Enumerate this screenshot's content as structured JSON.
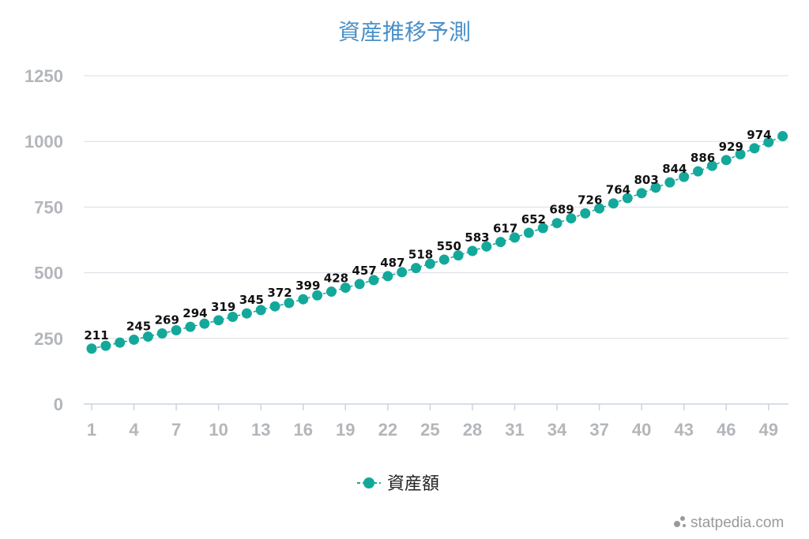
{
  "chart_data": {
    "type": "line",
    "title": "資産推移予測",
    "xlabel": "",
    "ylabel": "",
    "x": [
      1,
      2,
      3,
      4,
      5,
      6,
      7,
      8,
      9,
      10,
      11,
      12,
      13,
      14,
      15,
      16,
      17,
      18,
      19,
      20,
      21,
      22,
      23,
      24,
      25,
      26,
      27,
      28,
      29,
      30,
      31,
      32,
      33,
      34,
      35,
      36,
      37,
      38,
      39,
      40,
      41,
      42,
      43,
      44,
      45,
      46,
      47,
      48,
      49,
      50
    ],
    "x_ticks": [
      "1",
      "4",
      "7",
      "10",
      "13",
      "16",
      "19",
      "22",
      "25",
      "28",
      "31",
      "34",
      "37",
      "40",
      "43",
      "46",
      "49"
    ],
    "ylim": [
      0,
      1250
    ],
    "y_ticks": [
      "0",
      "250",
      "500",
      "750",
      "1000",
      "1250"
    ],
    "grid": true,
    "legend_position": "bottom",
    "series": [
      {
        "name": "資産額",
        "color": "#14a89a",
        "values": [
          211,
          222,
          234,
          245,
          257,
          269,
          281,
          294,
          306,
          319,
          332,
          345,
          358,
          372,
          385,
          399,
          414,
          428,
          443,
          457,
          472,
          487,
          502,
          518,
          534,
          550,
          566,
          583,
          600,
          617,
          634,
          652,
          670,
          689,
          707,
          726,
          745,
          764,
          784,
          803,
          824,
          844,
          865,
          886,
          907,
          929,
          951,
          974,
          997,
          1020
        ],
        "data_labels": [
          {
            "x": 1,
            "text": "211"
          },
          {
            "x": 4,
            "text": "245"
          },
          {
            "x": 6,
            "text": "269"
          },
          {
            "x": 8,
            "text": "294"
          },
          {
            "x": 10,
            "text": "319"
          },
          {
            "x": 12,
            "text": "345"
          },
          {
            "x": 14,
            "text": "372"
          },
          {
            "x": 16,
            "text": "399"
          },
          {
            "x": 18,
            "text": "428"
          },
          {
            "x": 20,
            "text": "457"
          },
          {
            "x": 22,
            "text": "487"
          },
          {
            "x": 24,
            "text": "518"
          },
          {
            "x": 26,
            "text": "550"
          },
          {
            "x": 28,
            "text": "583"
          },
          {
            "x": 30,
            "text": "617"
          },
          {
            "x": 32,
            "text": "652"
          },
          {
            "x": 34,
            "text": "689"
          },
          {
            "x": 36,
            "text": "726"
          },
          {
            "x": 38,
            "text": "764"
          },
          {
            "x": 40,
            "text": "803"
          },
          {
            "x": 42,
            "text": "844"
          },
          {
            "x": 44,
            "text": "886"
          },
          {
            "x": 46,
            "text": "929"
          },
          {
            "x": 48,
            "text": "974"
          }
        ]
      }
    ]
  },
  "watermark": "statpedia.com"
}
